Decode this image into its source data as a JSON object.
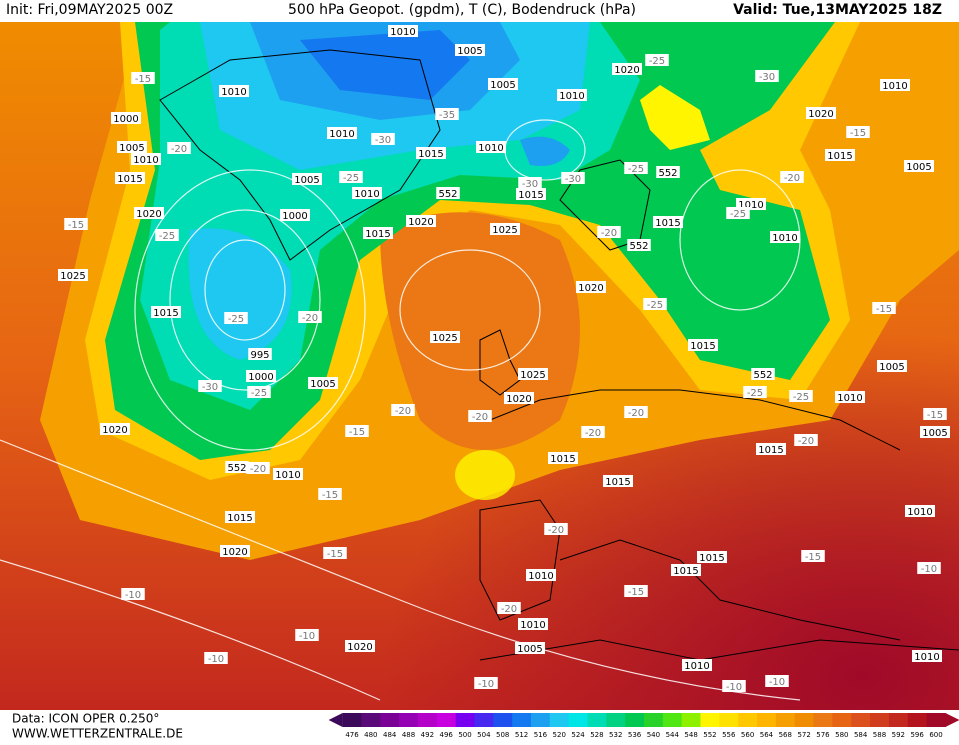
{
  "header": {
    "init": "Init: Fri,09MAY2025 00Z",
    "title": "500 hPa Geopot. (gpdm), T (C), Bodendruck (hPa)",
    "valid": "Valid: Tue,13MAY2025 18Z"
  },
  "footer": {
    "data": "Data: ICON OPER 0.250°",
    "site": "WWW.WETTERZENTRALE.DE"
  },
  "colorbar": {
    "values": [
      476,
      480,
      484,
      488,
      492,
      496,
      500,
      504,
      508,
      512,
      516,
      520,
      524,
      528,
      532,
      536,
      540,
      544,
      548,
      552,
      556,
      560,
      564,
      568,
      572,
      576,
      580,
      584,
      588,
      592,
      596,
      600
    ],
    "colors": [
      "#3c0a5a",
      "#5a0a78",
      "#7a0096",
      "#9600b4",
      "#b400c8",
      "#c800e0",
      "#7800f0",
      "#4628f0",
      "#1e50f0",
      "#1478f0",
      "#1ea0f0",
      "#1ec8f0",
      "#00e6e6",
      "#00dcb4",
      "#00d282",
      "#00c850",
      "#28d228",
      "#50e614",
      "#8cf000",
      "#fff500",
      "#ffe100",
      "#ffc800",
      "#ffb400",
      "#f5a000",
      "#f08c00",
      "#eb7814",
      "#e66414",
      "#dc501e",
      "#d23c1e",
      "#c3281e",
      "#b4141e",
      "#a00a28"
    ]
  },
  "map": {
    "isobar_labels": [
      "1010",
      "1005",
      "1020",
      "1010",
      "1005",
      "1010",
      "1010",
      "1000",
      "1020",
      "1005",
      "1010",
      "1010",
      "1015",
      "1010",
      "1015",
      "1005",
      "1015",
      "1005",
      "1010",
      "1015",
      "1020",
      "1000",
      "1020",
      "1025",
      "1015",
      "1015",
      "1010",
      "1010",
      "1025",
      "1020",
      "1015",
      "1025",
      "995",
      "1015",
      "1000",
      "1005",
      "1025",
      "1005",
      "1020",
      "1010",
      "1020",
      "1005",
      "1015",
      "1015",
      "1010",
      "1015",
      "1015",
      "1010",
      "1020",
      "1015",
      "1015",
      "1010",
      "1010",
      "1020",
      "1005",
      "1010",
      "1010",
      "552",
      "552",
      "552",
      "552",
      "552"
    ],
    "temperature_labels": [
      "-15",
      "-25",
      "-30",
      "-35",
      "-30",
      "-20",
      "-15",
      "-25",
      "-30",
      "-30",
      "-25",
      "-20",
      "-25",
      "-15",
      "-25",
      "-20",
      "-25",
      "-20",
      "-25",
      "-15",
      "-30",
      "-25",
      "-25",
      "-25",
      "-20",
      "-20",
      "-20",
      "-15",
      "-15",
      "-20",
      "-20",
      "-20",
      "-15",
      "-20",
      "-15",
      "-15",
      "-10",
      "-15",
      "-10",
      "-20",
      "-10",
      "-10",
      "-10",
      "-10",
      "-10"
    ]
  }
}
